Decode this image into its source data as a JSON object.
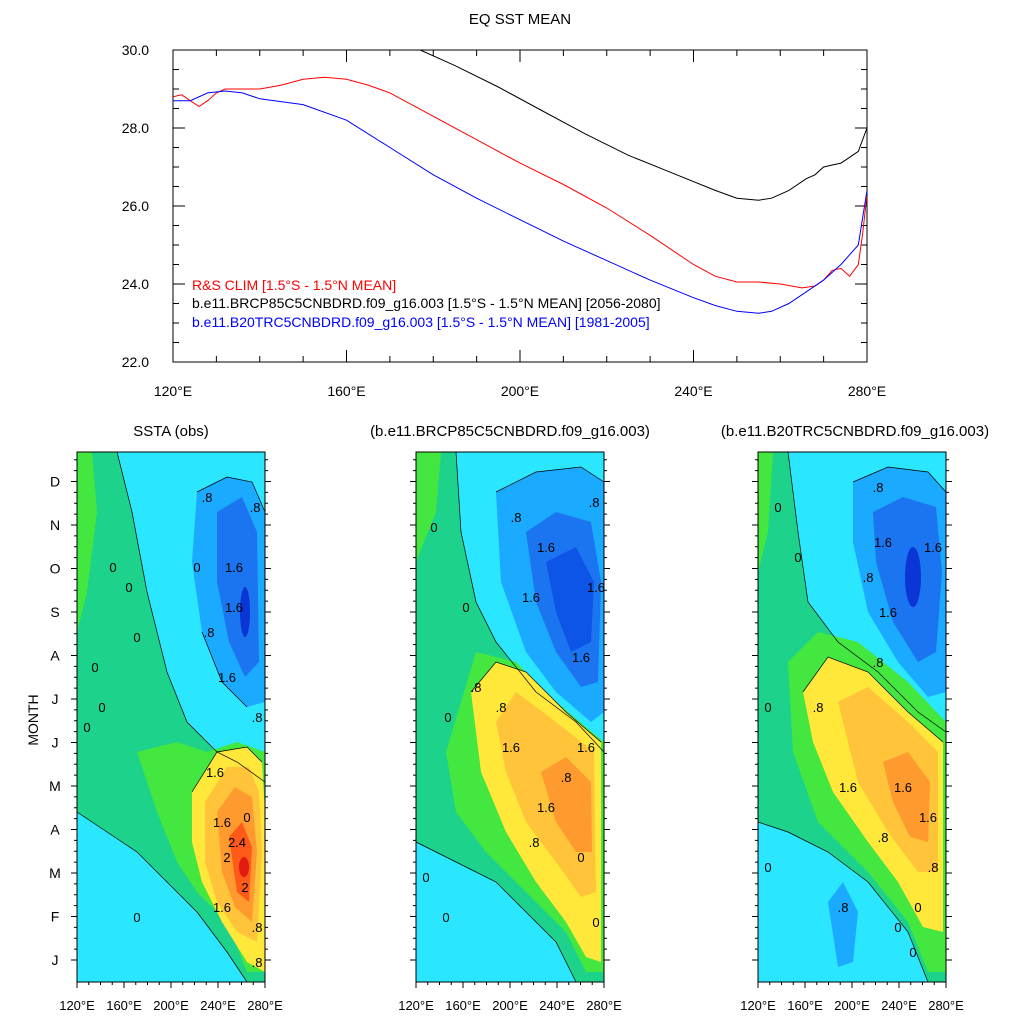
{
  "chart_data": [
    {
      "type": "line",
      "title": "EQ SST MEAN",
      "xlim": [
        120,
        280
      ],
      "ylim": [
        22,
        30
      ],
      "x_ticks": [
        120,
        160,
        200,
        240,
        280
      ],
      "x_tick_labels": [
        "120°E",
        "160°E",
        "200°E",
        "240°E",
        "280°E"
      ],
      "y_ticks": [
        22,
        24,
        26,
        28,
        30
      ],
      "y_tick_labels": [
        "22.0",
        "24.0",
        "26.0",
        "28.0",
        "30.0"
      ],
      "legend_placement": "lower-left",
      "series": [
        {
          "name": "R&S CLIM [1.5°S - 1.5°N MEAN]",
          "color": "#ff0000",
          "x": [
            120,
            122,
            124,
            126,
            128,
            130,
            132,
            136,
            140,
            145,
            150,
            155,
            160,
            165,
            170,
            180,
            190,
            200,
            210,
            220,
            230,
            240,
            245,
            250,
            255,
            260,
            265,
            268,
            270,
            272,
            274,
            276,
            278,
            279,
            280
          ],
          "y": [
            28.8,
            28.85,
            28.7,
            28.55,
            28.7,
            28.9,
            29.0,
            29.0,
            29.0,
            29.1,
            29.25,
            29.3,
            29.25,
            29.1,
            28.9,
            28.3,
            27.7,
            27.1,
            26.55,
            25.95,
            25.25,
            24.5,
            24.2,
            24.05,
            24.05,
            24.0,
            23.9,
            23.95,
            24.1,
            24.35,
            24.4,
            24.2,
            24.5,
            25.3,
            26.3
          ]
        },
        {
          "name": "b.e11.BRCP85C5CNBDRD.f09_g16.003 [1.5°S - 1.5°N MEAN] [2056-2080]",
          "color": "#000000",
          "x": [
            177,
            185,
            195,
            205,
            215,
            225,
            235,
            245,
            250,
            255,
            258,
            262,
            266,
            268,
            270,
            272,
            274,
            276,
            278,
            280
          ],
          "y": [
            30.0,
            29.6,
            29.05,
            28.45,
            27.85,
            27.3,
            26.85,
            26.4,
            26.2,
            26.15,
            26.2,
            26.4,
            26.7,
            26.8,
            27.0,
            27.05,
            27.1,
            27.25,
            27.4,
            28.0
          ]
        },
        {
          "name": "b.e11.B20TRC5CNBDRD.f09_g16.003 [1.5°S - 1.5°N MEAN] [1981-2005]",
          "color": "#0000ff",
          "x": [
            120,
            124,
            128,
            132,
            136,
            140,
            150,
            160,
            170,
            180,
            190,
            200,
            210,
            220,
            230,
            240,
            245,
            250,
            255,
            258,
            262,
            266,
            270,
            274,
            278,
            280
          ],
          "y": [
            28.7,
            28.7,
            28.9,
            28.95,
            28.9,
            28.75,
            28.6,
            28.2,
            27.5,
            26.8,
            26.2,
            25.65,
            25.1,
            24.6,
            24.1,
            23.65,
            23.45,
            23.3,
            23.25,
            23.3,
            23.5,
            23.8,
            24.1,
            24.5,
            25.0,
            26.4
          ]
        }
      ]
    },
    {
      "type": "heatmap",
      "title": "SSTA (obs)",
      "ylabel": "MONTH",
      "x_tick_labels": [
        "120°E",
        "160°E",
        "200°E",
        "240°E",
        "280°E"
      ],
      "y_tick_labels": [
        "J",
        "F",
        "M",
        "A",
        "M",
        "J",
        "J",
        "A",
        "S",
        "O",
        "N",
        "D"
      ],
      "contour_labels": [
        "0",
        "0",
        "0",
        "0",
        "0",
        "0",
        "0",
        "0",
        ".8",
        ".8",
        "1.6",
        "1.6",
        "1.6",
        ".8",
        ".8",
        "1.6",
        "1.6",
        "2.4",
        "2",
        "2",
        "1.6",
        ".8",
        ".8",
        "0"
      ]
    },
    {
      "type": "heatmap",
      "title": "(b.e11.BRCP85C5CNBDRD.f09_g16.003)",
      "x_tick_labels": [
        "120°E",
        "160°E",
        "200°E",
        "240°E",
        "280°E"
      ],
      "contour_labels": [
        "0",
        "0",
        "0",
        "0",
        "0",
        ".8",
        ".8",
        "1.6",
        "1.6",
        "1.6",
        "1.6",
        ".8",
        ".8",
        "1.6",
        "1.6",
        "1.6",
        ".8",
        ".8",
        "0",
        "0"
      ]
    },
    {
      "type": "heatmap",
      "title": "(b.e11.B20TRC5CNBDRD.f09_g16.003)",
      "x_tick_labels": [
        "120°E",
        "160°E",
        "200°E",
        "240°E",
        "280°E"
      ],
      "contour_labels": [
        "0",
        "0",
        "0",
        "0",
        ".8",
        ".8",
        "1.6",
        "1.6",
        "1.6",
        ".8",
        ".8",
        "1.6",
        "1.6",
        "1.6",
        ".8",
        ".8",
        ".8",
        "0",
        "0",
        "0"
      ]
    }
  ]
}
